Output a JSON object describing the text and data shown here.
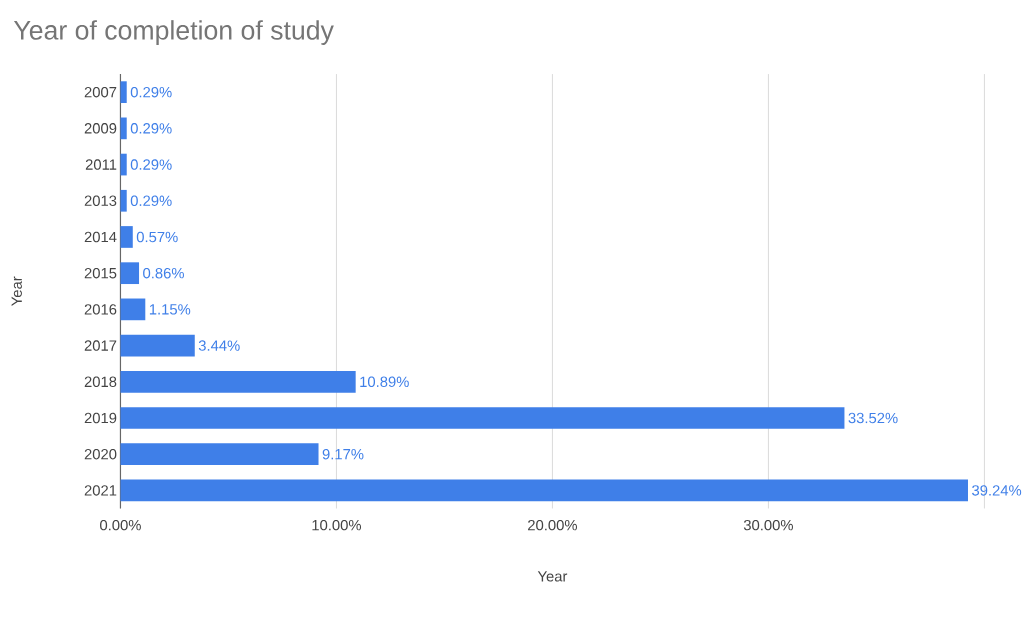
{
  "chart_data": {
    "type": "bar",
    "orientation": "horizontal",
    "title": "Year of completion of study",
    "xlabel": "Year",
    "ylabel": "Year",
    "categories": [
      "2007",
      "2009",
      "2011",
      "2013",
      "2014",
      "2015",
      "2016",
      "2017",
      "2018",
      "2019",
      "2020",
      "2021"
    ],
    "values": [
      0.29,
      0.29,
      0.29,
      0.29,
      0.57,
      0.86,
      1.15,
      3.44,
      10.89,
      33.52,
      9.17,
      39.24
    ],
    "value_labels": [
      "0.29%",
      "0.29%",
      "0.29%",
      "0.29%",
      "0.57%",
      "0.86%",
      "1.15%",
      "3.44%",
      "10.89%",
      "33.52%",
      "9.17%",
      "39.24%"
    ],
    "color": "#3f7fe8",
    "xlim": [
      0,
      40
    ],
    "xticks": [
      {
        "value": 0,
        "label": "0.00%"
      },
      {
        "value": 10,
        "label": "10.00%"
      },
      {
        "value": 20,
        "label": "20.00%"
      },
      {
        "value": 30,
        "label": "30.00%"
      },
      {
        "value": 40,
        "label": null
      }
    ],
    "grid": "x"
  }
}
